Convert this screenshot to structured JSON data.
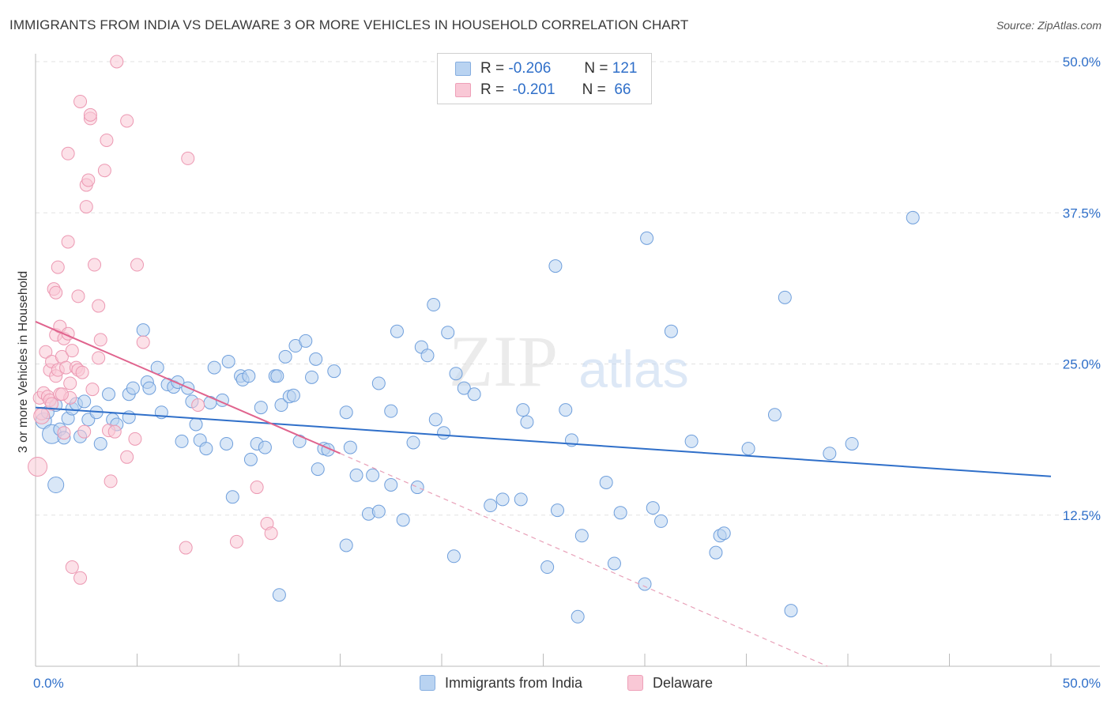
{
  "header": {
    "title": "IMMIGRANTS FROM INDIA VS DELAWARE 3 OR MORE VEHICLES IN HOUSEHOLD CORRELATION CHART",
    "source": "Source: ZipAtlas.com"
  },
  "watermark": {
    "part1": "ZIP",
    "part2": "atlas"
  },
  "legend": {
    "r_label": "R =",
    "n_label": "N =",
    "series": [
      {
        "r": "-0.206",
        "n": "121"
      },
      {
        "r": "-0.201",
        "n": "66"
      }
    ]
  },
  "bottom_legend": {
    "items": [
      "Immigrants from India",
      "Delaware"
    ]
  },
  "chart_data": {
    "type": "scatter",
    "title": "IMMIGRANTS FROM INDIA VS DELAWARE 3 OR MORE VEHICLES IN HOUSEHOLD CORRELATION CHART",
    "xlabel": "",
    "ylabel": "3 or more Vehicles in Household",
    "xlim": [
      0,
      50
    ],
    "ylim": [
      0,
      50
    ],
    "x_tick_labels": [
      "0.0%",
      "50.0%"
    ],
    "y_tick_values": [
      12.5,
      25.0,
      37.5,
      50.0
    ],
    "y_tick_labels": [
      "12.5%",
      "25.0%",
      "37.5%",
      "50.0%"
    ],
    "grid": "horizontal dashed",
    "legend_position": "top-center",
    "colors": {
      "blue": "#2f6fc9",
      "blue_fill": "#b9d3f1",
      "pink": "#e0648e",
      "pink_fill": "#f9c8d6"
    },
    "series": [
      {
        "name": "Immigrants from India",
        "color": "#2f6fc9",
        "trend": {
          "x": [
            0,
            50
          ],
          "y": [
            21.4,
            15.7
          ],
          "style": "solid"
        },
        "points": [
          [
            0.4,
            20.3,
            2
          ],
          [
            0.6,
            21.0,
            1
          ],
          [
            0.8,
            19.2,
            3
          ],
          [
            1.0,
            21.6,
            1
          ],
          [
            1.0,
            15.0,
            2
          ],
          [
            1.2,
            19.6,
            1
          ],
          [
            1.4,
            18.9,
            1
          ],
          [
            1.6,
            20.5,
            1
          ],
          [
            1.8,
            21.3,
            1
          ],
          [
            2.0,
            21.7,
            1
          ],
          [
            2.2,
            19.0,
            1
          ],
          [
            2.4,
            21.9,
            1
          ],
          [
            2.6,
            20.4,
            1
          ],
          [
            3.2,
            18.4,
            1
          ],
          [
            3.6,
            22.5,
            1
          ],
          [
            3.8,
            20.4,
            1
          ],
          [
            4.0,
            20.0,
            1
          ],
          [
            4.6,
            20.6,
            1
          ],
          [
            4.6,
            22.5,
            1
          ],
          [
            4.8,
            23.0,
            1
          ],
          [
            5.3,
            27.8,
            1
          ],
          [
            5.5,
            23.5,
            1
          ],
          [
            5.6,
            23.0,
            1
          ],
          [
            6.0,
            24.7,
            1
          ],
          [
            6.2,
            21.0,
            1
          ],
          [
            6.5,
            23.3,
            1
          ],
          [
            6.8,
            23.1,
            1
          ],
          [
            7.0,
            23.5,
            1
          ],
          [
            7.2,
            18.6,
            1
          ],
          [
            7.5,
            23.0,
            1
          ],
          [
            7.7,
            21.9,
            1
          ],
          [
            7.9,
            20.0,
            1
          ],
          [
            8.1,
            18.7,
            1
          ],
          [
            8.4,
            18.0,
            1
          ],
          [
            8.6,
            21.8,
            1
          ],
          [
            8.8,
            24.7,
            1
          ],
          [
            9.2,
            22.0,
            1
          ],
          [
            9.4,
            18.4,
            1
          ],
          [
            9.5,
            25.2,
            1
          ],
          [
            9.7,
            14.0,
            1
          ],
          [
            10.1,
            24.0,
            1
          ],
          [
            10.2,
            23.7,
            1
          ],
          [
            10.5,
            24.0,
            1
          ],
          [
            10.6,
            17.1,
            1
          ],
          [
            10.9,
            18.4,
            1
          ],
          [
            11.1,
            21.4,
            1
          ],
          [
            11.3,
            18.1,
            1
          ],
          [
            11.8,
            24.0,
            1
          ],
          [
            11.9,
            24.0,
            1
          ],
          [
            12.1,
            21.6,
            1
          ],
          [
            12.3,
            25.6,
            1
          ],
          [
            12.5,
            22.3,
            1
          ],
          [
            12.7,
            22.4,
            1
          ],
          [
            12.8,
            26.5,
            1
          ],
          [
            13.0,
            18.6,
            1
          ],
          [
            13.3,
            26.9,
            1
          ],
          [
            13.6,
            23.9,
            1
          ],
          [
            13.8,
            25.4,
            1
          ],
          [
            13.9,
            16.3,
            1
          ],
          [
            14.2,
            18.0,
            1
          ],
          [
            14.4,
            17.9,
            1
          ],
          [
            14.7,
            24.4,
            1
          ],
          [
            15.3,
            21.0,
            1
          ],
          [
            15.5,
            18.1,
            1
          ],
          [
            15.8,
            15.8,
            1
          ],
          [
            16.4,
            12.6,
            1
          ],
          [
            16.6,
            15.8,
            1
          ],
          [
            16.9,
            12.8,
            1
          ],
          [
            16.9,
            23.4,
            1
          ],
          [
            17.5,
            15.0,
            1
          ],
          [
            17.5,
            21.1,
            1
          ],
          [
            17.8,
            27.7,
            1
          ],
          [
            18.1,
            12.1,
            1
          ],
          [
            18.6,
            18.5,
            1
          ],
          [
            18.8,
            14.8,
            1
          ],
          [
            19.0,
            26.4,
            1
          ],
          [
            19.3,
            25.7,
            1
          ],
          [
            19.6,
            29.9,
            1
          ],
          [
            19.7,
            20.4,
            1
          ],
          [
            20.3,
            27.6,
            1
          ],
          [
            20.1,
            19.3,
            1
          ],
          [
            20.7,
            24.2,
            1
          ],
          [
            20.6,
            9.1,
            1
          ],
          [
            21.1,
            23.0,
            1
          ],
          [
            21.6,
            22.5,
            1
          ],
          [
            22.4,
            13.3,
            1
          ],
          [
            23.0,
            13.8,
            1
          ],
          [
            23.9,
            13.8,
            1
          ],
          [
            24.0,
            21.2,
            1
          ],
          [
            24.2,
            20.2,
            1
          ],
          [
            25.2,
            8.2,
            1
          ],
          [
            25.6,
            33.1,
            1
          ],
          [
            25.7,
            12.9,
            1
          ],
          [
            26.1,
            21.2,
            1
          ],
          [
            26.4,
            18.7,
            1
          ],
          [
            26.7,
            4.1,
            1
          ],
          [
            26.9,
            10.8,
            1
          ],
          [
            28.1,
            15.2,
            1
          ],
          [
            28.5,
            8.5,
            1
          ],
          [
            28.8,
            12.7,
            1
          ],
          [
            30.0,
            6.8,
            1
          ],
          [
            30.1,
            35.4,
            1
          ],
          [
            30.4,
            13.1,
            1
          ],
          [
            30.8,
            12.0,
            1
          ],
          [
            31.3,
            27.7,
            1
          ],
          [
            32.3,
            18.6,
            1
          ],
          [
            33.5,
            9.4,
            1
          ],
          [
            33.7,
            10.8,
            1
          ],
          [
            33.9,
            11.0,
            1
          ],
          [
            35.1,
            18.0,
            1
          ],
          [
            36.4,
            20.8,
            1
          ],
          [
            36.9,
            30.5,
            1
          ],
          [
            37.2,
            4.6,
            1
          ],
          [
            39.1,
            17.6,
            1
          ],
          [
            40.2,
            18.4,
            1
          ],
          [
            43.2,
            37.1,
            1
          ],
          [
            12.0,
            5.9,
            1
          ],
          [
            15.3,
            10.0,
            1
          ],
          [
            3.0,
            21.0,
            1
          ]
        ]
      },
      {
        "name": "Delaware",
        "color": "#e0648e",
        "trend": {
          "x": [
            0,
            15
          ],
          "y": [
            28.5,
            17.6
          ],
          "style": "solid"
        },
        "trend_extension": {
          "x": [
            15,
            39
          ],
          "y": [
            17.6,
            0
          ],
          "style": "dashed"
        },
        "points": [
          [
            0.1,
            16.5,
            3
          ],
          [
            0.2,
            22.2,
            1
          ],
          [
            0.3,
            20.9,
            1
          ],
          [
            0.4,
            22.6,
            1
          ],
          [
            0.5,
            26.0,
            1
          ],
          [
            0.6,
            22.3,
            1
          ],
          [
            0.7,
            22.0,
            1
          ],
          [
            0.7,
            24.5,
            1
          ],
          [
            0.8,
            25.2,
            1
          ],
          [
            0.8,
            21.7,
            1
          ],
          [
            0.9,
            31.2,
            1
          ],
          [
            1.0,
            30.9,
            1
          ],
          [
            1.0,
            27.4,
            1
          ],
          [
            1.0,
            24.0,
            1
          ],
          [
            1.1,
            33.0,
            1
          ],
          [
            1.1,
            24.5,
            1
          ],
          [
            1.2,
            28.1,
            1
          ],
          [
            1.2,
            22.5,
            1
          ],
          [
            1.3,
            25.6,
            1
          ],
          [
            1.4,
            27.1,
            1
          ],
          [
            1.4,
            19.3,
            1
          ],
          [
            1.5,
            24.7,
            1
          ],
          [
            1.6,
            27.5,
            1
          ],
          [
            1.6,
            35.1,
            1
          ],
          [
            1.6,
            42.4,
            1
          ],
          [
            1.7,
            23.4,
            1
          ],
          [
            1.7,
            22.2,
            1
          ],
          [
            1.8,
            26.1,
            1
          ],
          [
            1.8,
            8.2,
            1
          ],
          [
            2.0,
            24.7,
            1
          ],
          [
            2.1,
            30.6,
            1
          ],
          [
            2.1,
            24.5,
            1
          ],
          [
            2.2,
            7.3,
            1
          ],
          [
            2.2,
            46.7,
            1
          ],
          [
            2.3,
            24.3,
            1
          ],
          [
            2.4,
            19.4,
            1
          ],
          [
            2.5,
            38.0,
            1
          ],
          [
            2.5,
            39.8,
            1
          ],
          [
            2.6,
            40.2,
            1
          ],
          [
            2.7,
            45.3,
            1
          ],
          [
            2.7,
            45.6,
            1
          ],
          [
            2.8,
            22.9,
            1
          ],
          [
            2.9,
            33.2,
            1
          ],
          [
            3.1,
            29.8,
            1
          ],
          [
            3.1,
            25.5,
            1
          ],
          [
            3.2,
            27.0,
            1
          ],
          [
            3.4,
            41.0,
            1
          ],
          [
            3.5,
            43.5,
            1
          ],
          [
            3.6,
            19.5,
            1
          ],
          [
            3.7,
            15.3,
            1
          ],
          [
            3.9,
            19.4,
            1
          ],
          [
            4.0,
            50.0,
            1
          ],
          [
            4.5,
            17.3,
            1
          ],
          [
            4.5,
            45.1,
            1
          ],
          [
            4.9,
            18.8,
            1
          ],
          [
            5.0,
            33.2,
            1
          ],
          [
            5.3,
            26.8,
            1
          ],
          [
            7.4,
            9.8,
            1
          ],
          [
            7.5,
            42.0,
            1
          ],
          [
            8.0,
            21.6,
            1
          ],
          [
            9.9,
            10.3,
            1
          ],
          [
            10.9,
            14.8,
            1
          ],
          [
            11.4,
            11.8,
            1
          ],
          [
            11.6,
            11.0,
            1
          ],
          [
            0.3,
            20.7,
            2
          ],
          [
            1.3,
            22.5,
            1
          ]
        ]
      }
    ]
  }
}
